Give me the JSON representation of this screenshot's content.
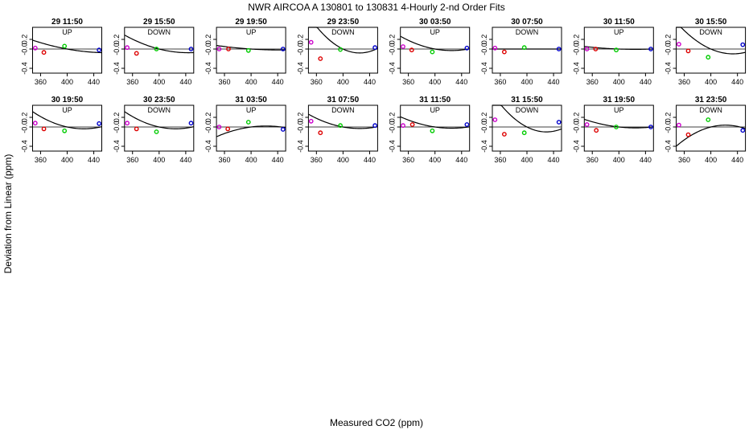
{
  "chart_data": {
    "type": "scatter",
    "title": "NWR   AIRCOA A   130801 to 130831   4-Hourly 2-nd Order Fits",
    "xlabel": "Measured CO2 (ppm)",
    "ylabel": "Deviation from Linear (ppm)",
    "xlim": [
      348,
      452
    ],
    "ylim": [
      -0.5,
      0.45
    ],
    "xticks": [
      360,
      400,
      440
    ],
    "yticks": [
      0.2,
      -0.0,
      -0.4
    ],
    "ytick_labels": [
      "0.2",
      "-0.0",
      "-0.4"
    ],
    "point_colors": [
      "#cc00cc",
      "#dd0000",
      "#00cc00",
      "#0000cc"
    ],
    "grid": false,
    "panels": [
      {
        "label": "29 11:50",
        "dir": "UP",
        "x": [
          352,
          365,
          396,
          448
        ],
        "y": [
          0.02,
          -0.07,
          0.06,
          -0.02
        ],
        "fit": [
          0.0,
          -0.0025,
          2e-05
        ]
      },
      {
        "label": "29 15:50",
        "dir": "DOWN",
        "x": [
          352,
          366,
          396,
          448
        ],
        "y": [
          0.03,
          -0.09,
          0.0,
          0.0
        ],
        "fit": [
          0.0,
          -0.0035,
          4e-05
        ]
      },
      {
        "label": "29 19:50",
        "dir": "UP",
        "x": [
          352,
          366,
          396,
          448
        ],
        "y": [
          0.0,
          0.0,
          -0.03,
          0.0
        ],
        "fit": [
          0.0,
          -0.0009,
          1e-05
        ]
      },
      {
        "label": "29 23:50",
        "dir": "DOWN",
        "x": [
          352,
          366,
          396,
          448
        ],
        "y": [
          0.14,
          -0.2,
          -0.01,
          0.03
        ],
        "fit": [
          0.0,
          -0.0065,
          0.00013
        ]
      },
      {
        "label": "30 03:50",
        "dir": "UP",
        "x": [
          352,
          365,
          396,
          448
        ],
        "y": [
          0.05,
          -0.02,
          -0.06,
          0.02
        ],
        "fit": [
          0.0,
          -0.0025,
          5e-05
        ]
      },
      {
        "label": "30 07:50",
        "dir": "DOWN",
        "x": [
          352,
          366,
          396,
          448
        ],
        "y": [
          0.02,
          -0.06,
          0.03,
          0.0
        ],
        "fit": [
          0.0,
          0.0,
          0.0
        ]
      },
      {
        "label": "30 11:50",
        "dir": "UP",
        "x": [
          352,
          365,
          396,
          448
        ],
        "y": [
          0.0,
          0.0,
          -0.02,
          0.0
        ],
        "fit": [
          0.0,
          -0.0005,
          1e-05
        ]
      },
      {
        "label": "30 15:50",
        "dir": "DOWN",
        "x": [
          352,
          366,
          396,
          448
        ],
        "y": [
          0.1,
          -0.04,
          -0.17,
          0.09
        ],
        "fit": [
          0.0,
          -0.006,
          9e-05
        ]
      },
      {
        "label": "30 19:50",
        "dir": "UP",
        "x": [
          352,
          365,
          396,
          448
        ],
        "y": [
          0.08,
          -0.04,
          -0.08,
          0.07
        ],
        "fit": [
          0.0,
          -0.003,
          6e-05
        ]
      },
      {
        "label": "30 23:50",
        "dir": "DOWN",
        "x": [
          352,
          366,
          396,
          448
        ],
        "y": [
          0.08,
          -0.04,
          -0.1,
          0.08
        ],
        "fit": [
          0.0,
          -0.003,
          6e-05
        ]
      },
      {
        "label": "31 03:50",
        "dir": "UP",
        "x": [
          352,
          365,
          396,
          448
        ],
        "y": [
          0.0,
          -0.04,
          0.1,
          -0.05
        ],
        "fit": [
          0.0,
          0.0018,
          -4e-05
        ]
      },
      {
        "label": "31 07:50",
        "dir": "DOWN",
        "x": [
          352,
          366,
          396,
          448
        ],
        "y": [
          0.12,
          -0.12,
          0.03,
          0.03
        ],
        "fit": [
          0.0,
          -0.0025,
          5e-05
        ]
      },
      {
        "label": "31 11:50",
        "dir": "UP",
        "x": [
          352,
          366,
          396,
          448
        ],
        "y": [
          0.03,
          0.05,
          -0.08,
          0.05
        ],
        "fit": [
          0.0,
          -0.002,
          4e-05
        ]
      },
      {
        "label": "31 15:50",
        "dir": "DOWN",
        "x": [
          352,
          366,
          396,
          448
        ],
        "y": [
          0.15,
          -0.15,
          -0.12,
          0.1
        ],
        "fit": [
          0.0,
          -0.007,
          0.00012
        ]
      },
      {
        "label": "31 19:50",
        "dir": "UP",
        "x": [
          352,
          366,
          396,
          448
        ],
        "y": [
          0.05,
          -0.07,
          0.0,
          0.0
        ],
        "fit": [
          0.0,
          -0.0015,
          3e-05
        ]
      },
      {
        "label": "31 23:50",
        "dir": "DOWN",
        "x": [
          352,
          366,
          396,
          448
        ],
        "y": [
          0.04,
          -0.16,
          0.15,
          -0.07
        ],
        "fit": [
          0.0,
          0.0035,
          -8e-05
        ]
      }
    ]
  }
}
